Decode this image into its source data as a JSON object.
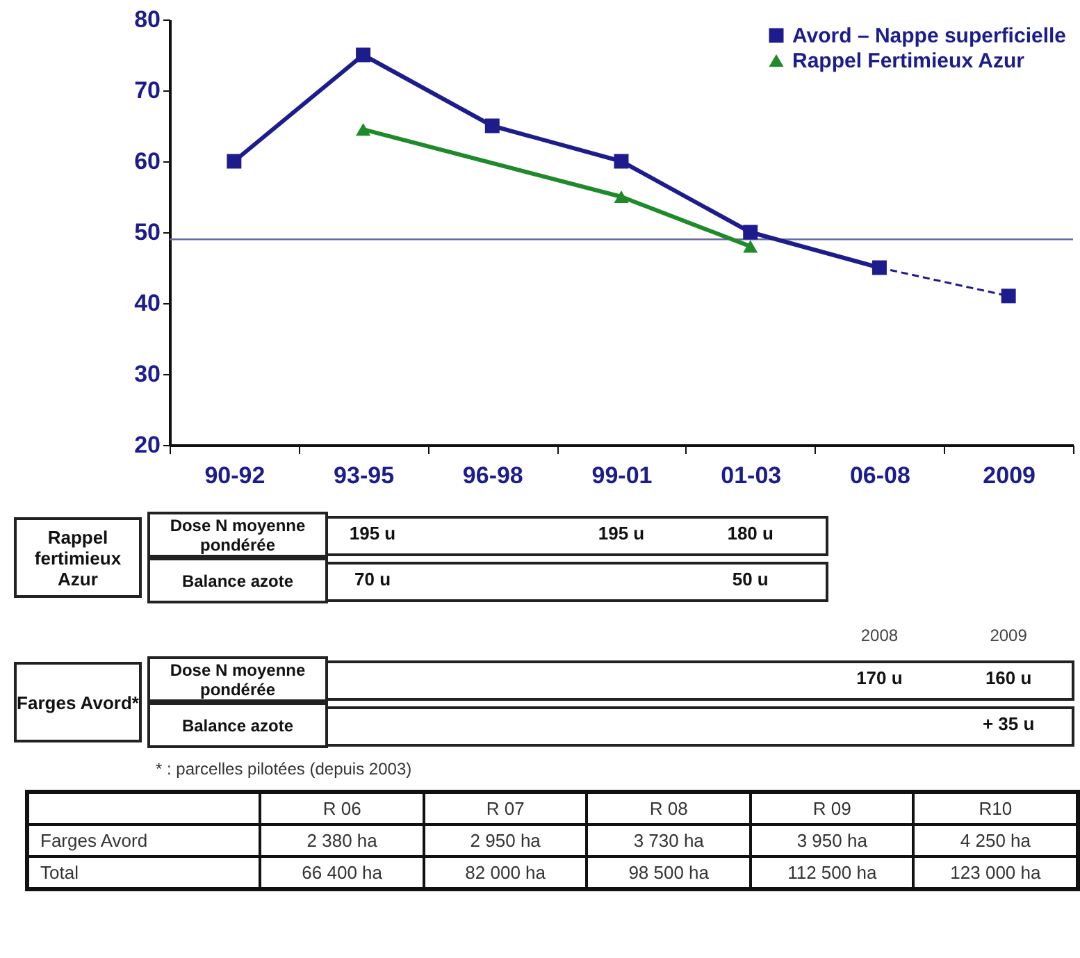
{
  "chart_data": [
    {
      "type": "line",
      "categories": [
        "90-92",
        "93-95",
        "96-98",
        "99-01",
        "01-03",
        "06-08",
        "2009"
      ],
      "series": [
        {
          "name": "Avord – Nappe superficielle",
          "color": "#1c1c8c",
          "marker": "square",
          "line_style": "solid",
          "values": [
            60,
            75,
            65,
            60,
            50,
            45,
            null
          ]
        },
        {
          "color": "#1c1c8c",
          "marker": "square",
          "line_style": "dashed",
          "values": [
            null,
            null,
            null,
            null,
            null,
            45,
            41
          ]
        },
        {
          "name": "Rappel Fertimieux Azur",
          "color": "#1f8a2a",
          "marker": "triangle",
          "line_style": "solid",
          "values": [
            null,
            64.5,
            null,
            55,
            48,
            null,
            null
          ]
        }
      ],
      "ylim": [
        20,
        80
      ],
      "yticks": [
        20,
        30,
        40,
        50,
        60,
        70,
        80
      ],
      "grid": false,
      "legend": "top right",
      "ref_lines": [
        {
          "axis": "y",
          "value": 49,
          "color": "#6a6aa8"
        }
      ]
    },
    {
      "type": "other",
      "categories": [
        null,
        null,
        null,
        null,
        null,
        "2008",
        "2009"
      ],
      "y_categories": [
        "Dose N moyenne pondérée",
        "Balance azote",
        "Dose N moyenne pondérée",
        "Balance azote"
      ],
      "cell_labels": [
        [
          "195 u",
          null,
          null,
          "195 u",
          "180 u",
          null,
          null
        ],
        [
          "70 u",
          null,
          null,
          null,
          "50 u",
          null,
          null
        ],
        [
          null,
          null,
          null,
          null,
          null,
          "170 u",
          "160 u"
        ],
        [
          null,
          null,
          null,
          null,
          null,
          null,
          "+ 35 u"
        ]
      ],
      "annotations": [
        "Rappel fertimieux Azur",
        "Farges Avord*",
        "* : parcelles pilotées (depuis 2003)"
      ]
    },
    {
      "type": "other",
      "categories": [
        "R 06",
        "R 07",
        "R 08",
        "R 09",
        "R10"
      ],
      "y_categories": [
        "Farges Avord",
        "Total"
      ],
      "cell_labels": [
        [
          "2 380 ha",
          "2 950 ha",
          "3 730 ha",
          "3 950 ha",
          "4 250 ha"
        ],
        [
          "66 400 ha",
          "82 000 ha",
          "98 500 ha",
          "112 500 ha",
          "123 000 ha"
        ]
      ]
    }
  ]
}
